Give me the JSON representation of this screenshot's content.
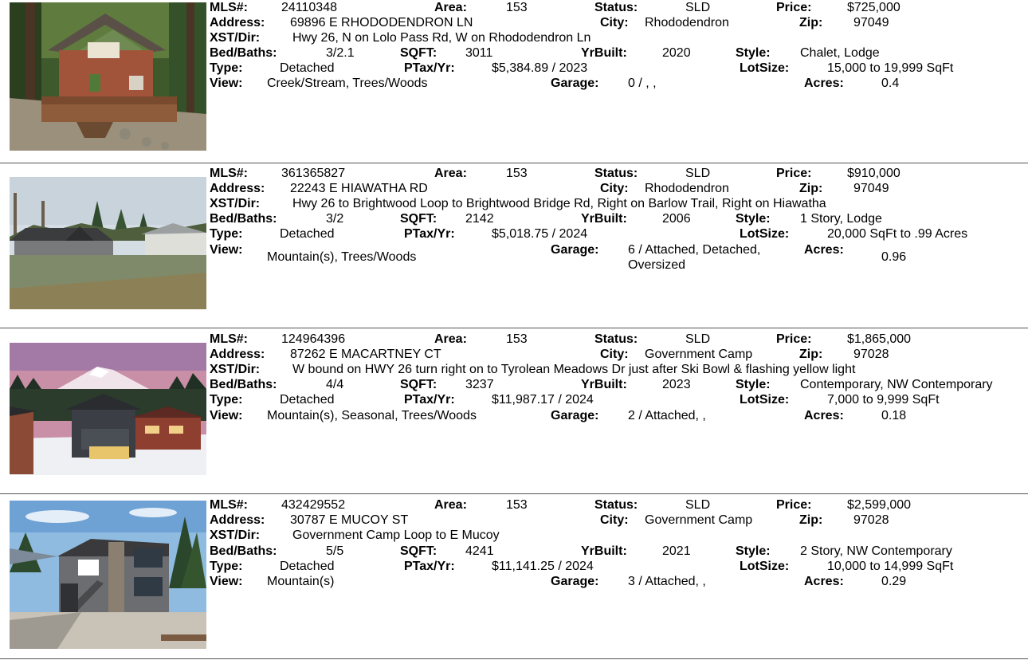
{
  "labels": {
    "mls": "MLS#:",
    "area": "Area:",
    "status": "Status:",
    "price": "Price:",
    "address": "Address:",
    "city": "City:",
    "zip": "Zip:",
    "xst": "XST/Dir:",
    "bed_baths": "Bed/Baths:",
    "sqft": "SQFT:",
    "yr_built": "YrBuilt:",
    "style": "Style:",
    "type": "Type:",
    "ptax": "PTax/Yr:",
    "lot_size": "LotSize:",
    "view": "View:",
    "garage": "Garage:",
    "acres": "Acres:"
  },
  "listings": [
    {
      "photo_subject": "chalet-house-photo",
      "mls": "24110348",
      "area": "153",
      "status": "SLD",
      "price": "$725,000",
      "address": "69896 E RHODODENDRON LN",
      "city": "Rhododendron",
      "zip": "97049",
      "xst": "Hwy 26, N on Lolo Pass Rd, W on Rhododendron Ln",
      "bed_baths": "3/2.1",
      "sqft": "3011",
      "yr_built": "2020",
      "style": "Chalet, Lodge",
      "type": "Detached",
      "ptax": "$5,384.89 / 2023",
      "lot_size": "15,000 to 19,999 SqFt",
      "view": "Creek/Stream, Trees/Woods",
      "garage": "0 / , ,",
      "acres": "0.4"
    },
    {
      "photo_subject": "single-story-lodge-photo",
      "mls": "361365827",
      "area": "153",
      "status": "SLD",
      "price": "$910,000",
      "address": "22243 E HIAWATHA RD",
      "city": "Rhododendron",
      "zip": "97049",
      "xst": "Hwy 26 to Brightwood Loop to Brightwood Bridge Rd, Right on Barlow Trail, Right on Hiawatha",
      "bed_baths": "3/2",
      "sqft": "2142",
      "yr_built": "2006",
      "style": "1 Story, Lodge",
      "type": "Detached",
      "ptax": "$5,018.75 / 2024",
      "lot_size": "20,000 SqFt to .99 Acres",
      "view": "Mountain(s), Trees/Woods",
      "garage": "6 / Attached, Detached, Oversized",
      "acres": "0.96"
    },
    {
      "photo_subject": "snowy-contemporary-photo",
      "mls": "124964396",
      "area": "153",
      "status": "SLD",
      "price": "$1,865,000",
      "address": "87262 E MACARTNEY CT",
      "city": "Government Camp",
      "zip": "97028",
      "xst": "W bound on HWY 26 turn right on to Tyrolean Meadows Dr just after Ski Bowl & flashing yellow light",
      "bed_baths": "4/4",
      "sqft": "3237",
      "yr_built": "2023",
      "style": "Contemporary, NW Contemporary",
      "type": "Detached",
      "ptax": "$11,987.17 / 2024",
      "lot_size": "7,000 to 9,999 SqFt",
      "view": "Mountain(s), Seasonal, Trees/Woods",
      "garage": "2 / Attached, ,",
      "acres": "0.18"
    },
    {
      "photo_subject": "two-story-contemporary-photo",
      "mls": "432429552",
      "area": "153",
      "status": "SLD",
      "price": "$2,599,000",
      "address": "30787 E MUCOY ST",
      "city": "Government Camp",
      "zip": "97028",
      "xst": "Government Camp Loop to E Mucoy",
      "bed_baths": "5/5",
      "sqft": "4241",
      "yr_built": "2021",
      "style": "2 Story, NW Contemporary",
      "type": "Detached",
      "ptax": "$11,141.25 / 2024",
      "lot_size": "10,000 to 14,999 SqFt",
      "view": "Mountain(s)",
      "garage": "3 / Attached, ,",
      "acres": "0.29"
    }
  ]
}
